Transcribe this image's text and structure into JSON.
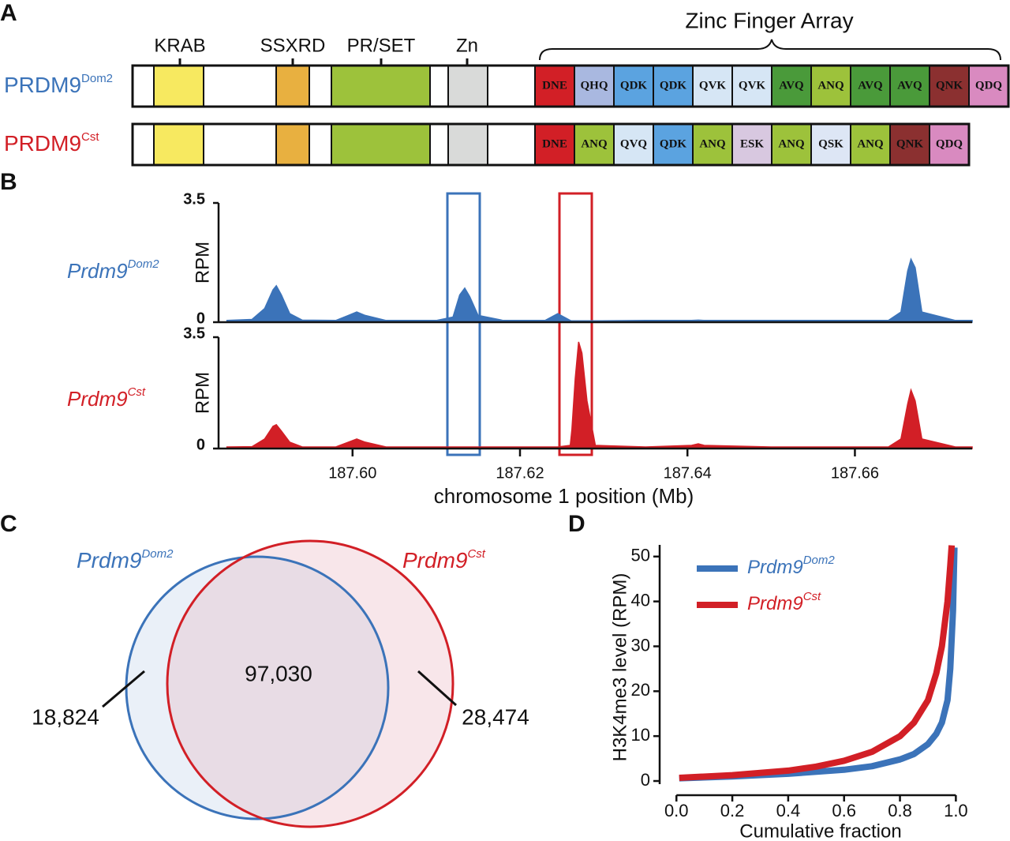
{
  "panel_labels": [
    "A",
    "B",
    "C",
    "D"
  ],
  "domains": {
    "labels": [
      "KRAB",
      "SSXRD",
      "PR/SET",
      "Zn"
    ],
    "zinc_finger_label": "Zinc Finger Array",
    "rows": [
      {
        "name": "PRDM9",
        "name_sup": "Dom2",
        "color": "#3b73b9",
        "fingers": [
          {
            "label": "DNE",
            "color": "#d21f26"
          },
          {
            "label": "QHQ",
            "color": "#a9b8e0"
          },
          {
            "label": "QDK",
            "color": "#5ba3e0"
          },
          {
            "label": "QDK",
            "color": "#5ba3e0"
          },
          {
            "label": "QVK",
            "color": "#d6e6f5"
          },
          {
            "label": "QVK",
            "color": "#d6e6f5"
          },
          {
            "label": "AVQ",
            "color": "#4a9a3a"
          },
          {
            "label": "ANQ",
            "color": "#9dc23b"
          },
          {
            "label": "AVQ",
            "color": "#4a9a3a"
          },
          {
            "label": "AVQ",
            "color": "#4a9a3a"
          },
          {
            "label": "QNK",
            "color": "#8b3030"
          },
          {
            "label": "QDQ",
            "color": "#d98ac0"
          }
        ]
      },
      {
        "name": "PRDM9",
        "name_sup": "Cst",
        "color": "#d21f26",
        "fingers": [
          {
            "label": "DNE",
            "color": "#d21f26"
          },
          {
            "label": "ANQ",
            "color": "#9dc23b"
          },
          {
            "label": "QVQ",
            "color": "#d6e6f5"
          },
          {
            "label": "QDK",
            "color": "#5ba3e0"
          },
          {
            "label": "ANQ",
            "color": "#9dc23b"
          },
          {
            "label": "ESK",
            "color": "#d8c8e0"
          },
          {
            "label": "ANQ",
            "color": "#9dc23b"
          },
          {
            "label": "QSK",
            "color": "#dde6f5"
          },
          {
            "label": "ANQ",
            "color": "#9dc23b"
          },
          {
            "label": "QNK",
            "color": "#8b3030"
          },
          {
            "label": "QDQ",
            "color": "#d98ac0"
          }
        ]
      }
    ]
  },
  "venn": {
    "sets": [
      {
        "name": "Prdm9",
        "name_sup": "Dom2",
        "color": "#3b73b9"
      },
      {
        "name": "Prdm9",
        "name_sup": "Cst",
        "color": "#d21f26"
      }
    ],
    "left_only": "18,824",
    "overlap": "97,030",
    "right_only": "28,474"
  },
  "chart_data": [
    {
      "type": "area",
      "name": "Prdm9",
      "name_sup": "Dom2",
      "color": "#3b73b9",
      "y_label": "RPM",
      "x": [
        187.585,
        187.588,
        187.5895,
        187.5905,
        187.5909,
        187.5915,
        187.5925,
        187.594,
        187.598,
        187.5995,
        187.6005,
        187.6015,
        187.604,
        187.61,
        187.612,
        187.6128,
        187.6134,
        187.614,
        187.615,
        187.618,
        187.623,
        187.6245,
        187.626,
        187.6262,
        187.6266,
        187.627,
        187.6274,
        187.628,
        187.629,
        187.635,
        187.6405,
        187.6413,
        187.642,
        187.65,
        187.664,
        187.6655,
        187.6663,
        187.6667,
        187.6672,
        187.668,
        187.672,
        187.674
      ],
      "values": [
        0.05,
        0.08,
        0.4,
        0.95,
        1.07,
        0.8,
        0.25,
        0.06,
        0.05,
        0.2,
        0.3,
        0.2,
        0.05,
        0.05,
        0.15,
        0.8,
        1.0,
        0.75,
        0.2,
        0.05,
        0.05,
        0.25,
        0.05,
        0.04,
        0.04,
        0.04,
        0.04,
        0.04,
        0.04,
        0.05,
        0.05,
        0.06,
        0.05,
        0.05,
        0.05,
        0.3,
        1.5,
        1.85,
        1.6,
        0.3,
        0.05,
        0.05
      ],
      "xlim": [
        187.584,
        187.674
      ],
      "ylim": [
        0,
        3.5
      ],
      "yticks": [
        0,
        3.5
      ]
    },
    {
      "type": "area",
      "name": "Prdm9",
      "name_sup": "Cst",
      "color": "#d21f26",
      "y_label": "RPM",
      "x": [
        187.585,
        187.588,
        187.5895,
        187.5905,
        187.5909,
        187.5915,
        187.5925,
        187.594,
        187.598,
        187.5995,
        187.6005,
        187.6015,
        187.604,
        187.61,
        187.612,
        187.6128,
        187.6134,
        187.614,
        187.615,
        187.618,
        187.623,
        187.6245,
        187.626,
        187.6262,
        187.6266,
        187.627,
        187.6274,
        187.628,
        187.629,
        187.635,
        187.6405,
        187.6413,
        187.642,
        187.65,
        187.664,
        187.6655,
        187.6663,
        187.6667,
        187.6672,
        187.668,
        187.672,
        187.674
      ],
      "values": [
        0.05,
        0.06,
        0.3,
        0.7,
        0.75,
        0.55,
        0.2,
        0.05,
        0.05,
        0.2,
        0.3,
        0.2,
        0.05,
        0.05,
        0.05,
        0.05,
        0.05,
        0.05,
        0.05,
        0.05,
        0.05,
        0.05,
        0.1,
        0.6,
        2.2,
        3.35,
        3.0,
        1.5,
        0.1,
        0.05,
        0.1,
        0.15,
        0.1,
        0.05,
        0.05,
        0.3,
        1.4,
        1.84,
        1.5,
        0.3,
        0.05,
        0.05
      ],
      "xlim": [
        187.584,
        187.674
      ],
      "ylim": [
        0,
        3.5
      ],
      "yticks": [
        0,
        3.5
      ],
      "xticks": [
        {
          "value": 187.6,
          "label": "187.60"
        },
        187.62,
        187.64,
        187.66
      ],
      "x_label": "chromosome 1 position (Mb)"
    },
    {
      "type": "line",
      "x_label": "Cumulative fraction",
      "y_label": "H3K4me3 level (RPM)",
      "legend": "upper-left",
      "xlim": [
        -0.06,
        1.03
      ],
      "ylim": [
        -0.7,
        52.6
      ],
      "xticks": [
        {
          "value": 0,
          "label": "0.0"
        },
        0.2,
        0.4,
        0.6,
        0.8,
        {
          "value": 1,
          "label": "1.0"
        }
      ],
      "yticks": [
        0,
        10,
        20,
        30,
        40,
        50
      ],
      "series": [
        {
          "name": "Prdm9",
          "name_sup": "Dom2",
          "color": "#3b73b9",
          "x": [
            0.01,
            0.2,
            0.4,
            0.6,
            0.7,
            0.8,
            0.85,
            0.9,
            0.93,
            0.95,
            0.97,
            0.98,
            0.99,
            0.995
          ],
          "values": [
            0.6,
            1.0,
            1.6,
            2.5,
            3.3,
            4.8,
            6,
            8.2,
            10.5,
            13,
            18,
            25,
            38,
            52
          ]
        },
        {
          "name": "Prdm9",
          "name_sup": "Cst",
          "color": "#d21f26",
          "x": [
            0.01,
            0.2,
            0.4,
            0.5,
            0.6,
            0.7,
            0.8,
            0.85,
            0.9,
            0.93,
            0.95,
            0.97,
            0.98,
            0.985
          ],
          "values": [
            0.7,
            1.3,
            2.3,
            3.2,
            4.5,
            6.5,
            10,
            13,
            18,
            24,
            30,
            40,
            48,
            52.5
          ]
        }
      ]
    }
  ]
}
